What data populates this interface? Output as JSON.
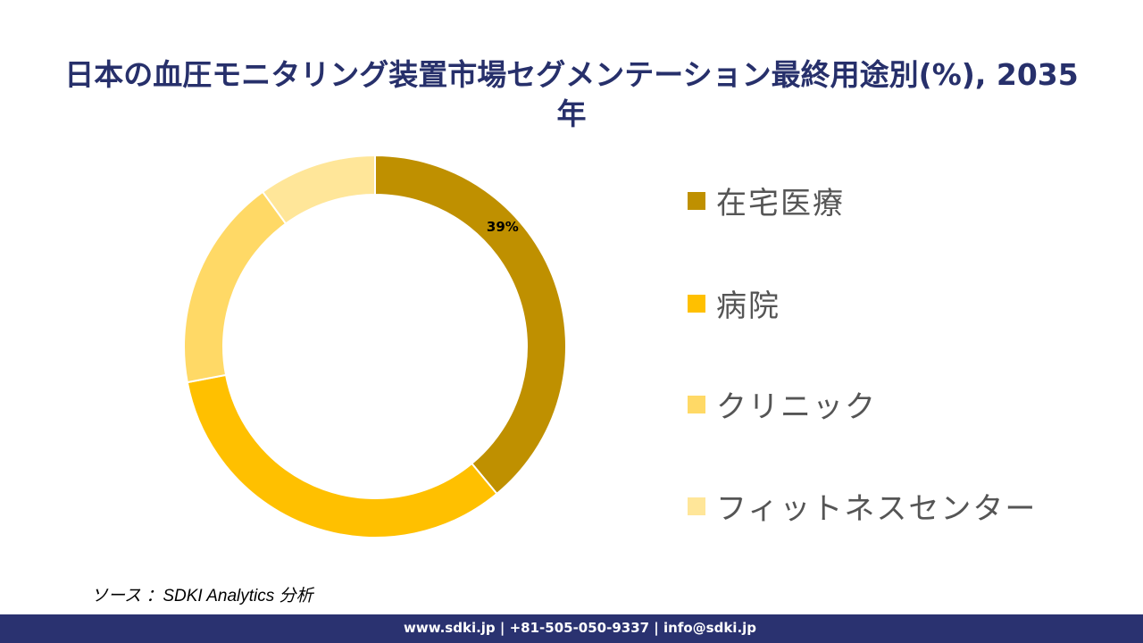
{
  "chart_data": {
    "type": "pie",
    "donut": true,
    "title": "日本の血圧モニタリング装置市場セグメンテーション最終用途別(%), 2035年",
    "categories": [
      "在宅医療",
      "病院",
      "クリニック",
      "フィットネスセンター"
    ],
    "values": [
      39,
      33,
      18,
      10
    ],
    "data_labels": [
      "39%",
      "",
      "",
      ""
    ],
    "colors": [
      "#bf9000",
      "#ffc000",
      "#ffd966",
      "#ffe699"
    ],
    "legend_position": "right"
  },
  "source": "ソース ：SDKI Analytics 分析",
  "footer": "www.sdki.jp | +81-505-050-9337 | info@sdki.jp"
}
